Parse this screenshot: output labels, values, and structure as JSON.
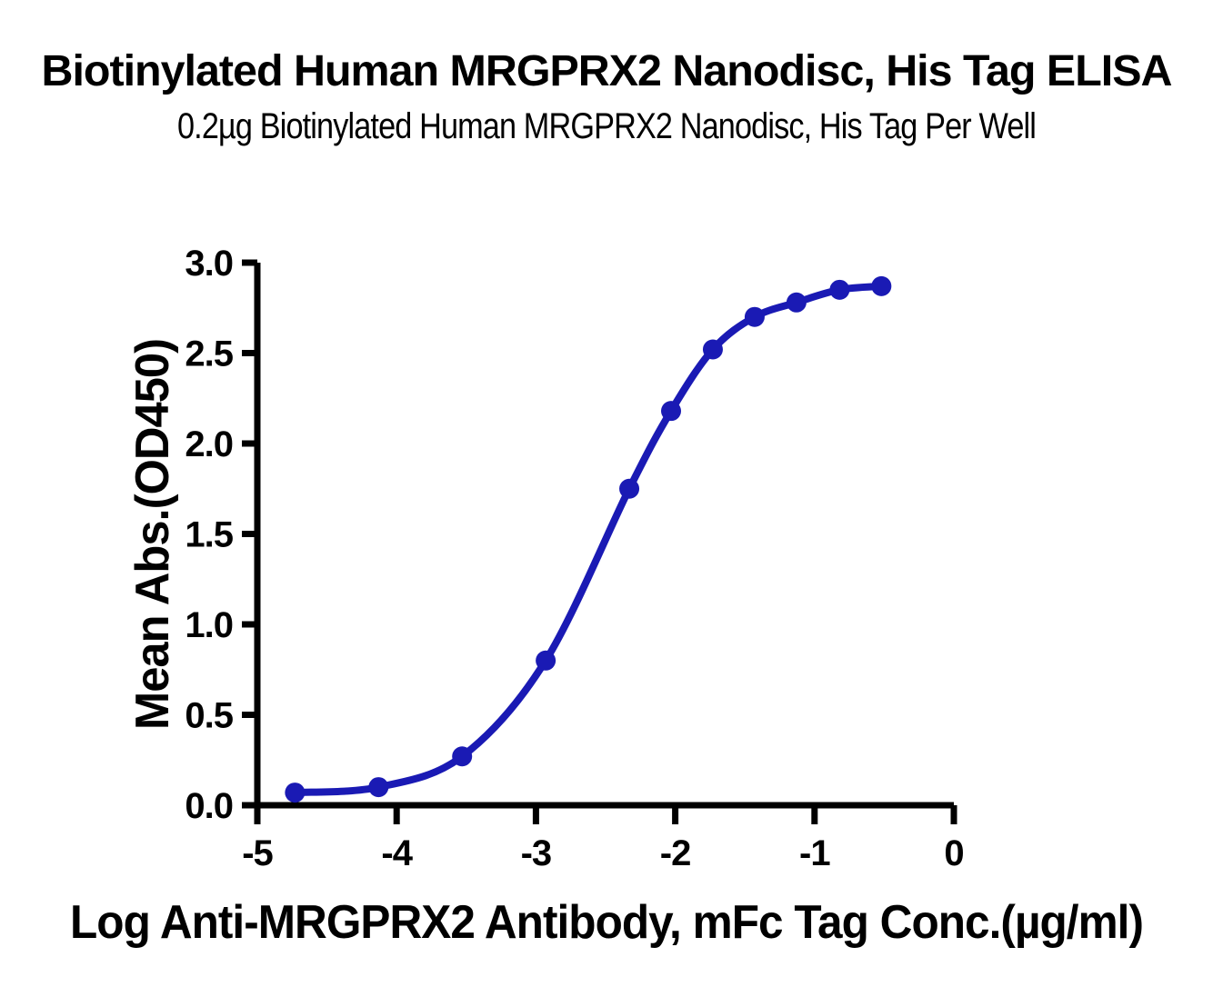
{
  "chart_data": {
    "type": "line",
    "title": "Biotinylated Human MRGPRX2 Nanodisc, His Tag ELISA",
    "subtitle": "0.2µg Biotinylated Human MRGPRX2 Nanodisc, His Tag Per Well",
    "xlabel": "Log Anti-MRGPRX2 Antibody, mFc Tag Conc.(µg/ml)",
    "ylabel": "Mean Abs.(OD450)",
    "series": [
      {
        "name": "Anti-MRGPRX2 Antibody, mFc Tag",
        "x": [
          -4.73,
          -4.13,
          -3.53,
          -2.93,
          -2.33,
          -2.03,
          -1.73,
          -1.43,
          -1.13,
          -0.82,
          -0.52
        ],
        "y": [
          0.07,
          0.1,
          0.27,
          0.8,
          1.75,
          2.18,
          2.52,
          2.7,
          2.78,
          2.85,
          2.87
        ]
      }
    ],
    "curve_fit": "4PL sigmoid through points",
    "xlim": [
      -5,
      0
    ],
    "ylim": [
      0,
      3
    ],
    "xticks": {
      "values": [
        -5,
        -4,
        -3,
        -2,
        -1,
        0
      ],
      "labels": [
        "-5",
        "-4",
        "-3",
        "-2",
        "-1",
        "0"
      ]
    },
    "yticks": {
      "values": [
        0,
        0.5,
        1,
        1.5,
        2,
        2.5,
        3
      ],
      "labels": [
        "0.0",
        "0.5",
        "1.0",
        "1.5",
        "2.0",
        "2.5",
        "3.0"
      ]
    },
    "grid": false,
    "legend_position": "none",
    "line_color": "#1A1AB4",
    "marker_color": "#1A1AB4",
    "axis_color": "#000000",
    "text_color": "#000000",
    "background_color": "#FFFFFF"
  }
}
